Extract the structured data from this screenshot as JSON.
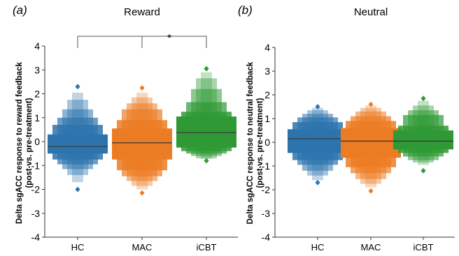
{
  "chart_data": [
    {
      "type": "boxen",
      "panel_label": "(a)",
      "title": "Reward",
      "ylabel_line1": "Delta sgACC response to reward feedback",
      "ylabel_line2": "(post-vs. pre-treatment)",
      "categories": [
        "HC",
        "MAC",
        "iCBT"
      ],
      "colors": [
        "#2d74ad",
        "#ec7c23",
        "#2f9a35"
      ],
      "ylim": [
        -4,
        4
      ],
      "yticks": [
        -4,
        -3,
        -2,
        -1,
        0,
        1,
        2,
        3,
        4
      ],
      "series": [
        {
          "name": "HC",
          "median": -0.2,
          "levels": [
            [
              -0.5,
              0.3
            ],
            [
              -0.75,
              0.7
            ],
            [
              -0.95,
              1.0
            ],
            [
              -1.15,
              1.35
            ],
            [
              -1.4,
              1.75
            ],
            [
              -1.7,
              2.05
            ]
          ],
          "outliers": [
            -2.0,
            2.3
          ]
        },
        {
          "name": "MAC",
          "median": -0.05,
          "levels": [
            [
              -0.75,
              0.55
            ],
            [
              -1.2,
              0.9
            ],
            [
              -1.45,
              1.35
            ],
            [
              -1.65,
              1.6
            ],
            [
              -1.85,
              1.85
            ],
            [
              -2.0,
              2.05
            ]
          ],
          "outliers": [
            -2.15,
            2.25
          ]
        },
        {
          "name": "iCBT",
          "median": 0.38,
          "levels": [
            [
              -0.25,
              1.05
            ],
            [
              -0.4,
              1.25
            ],
            [
              -0.5,
              1.65
            ],
            [
              -0.6,
              2.2
            ],
            [
              -0.7,
              2.65
            ],
            [
              -0.72,
              2.9
            ]
          ],
          "outliers": [
            -0.8,
            3.05
          ]
        }
      ],
      "annotation": "*"
    },
    {
      "type": "boxen",
      "panel_label": "(b)",
      "title": "Neutral",
      "ylabel_line1": "Delta sgACC response to neutral feedback",
      "ylabel_line2": "(post-vs. pre-treatment)",
      "categories": [
        "HC",
        "MAC",
        "iCBT"
      ],
      "colors": [
        "#2d74ad",
        "#ec7c23",
        "#2f9a35"
      ],
      "ylim": [
        -4,
        4
      ],
      "yticks": [
        -4,
        -3,
        -2,
        -1,
        0,
        1,
        2,
        3,
        4
      ],
      "series": [
        {
          "name": "HC",
          "median": 0.15,
          "levels": [
            [
              -0.45,
              0.55
            ],
            [
              -0.75,
              0.85
            ],
            [
              -0.95,
              1.05
            ],
            [
              -1.2,
              1.2
            ],
            [
              -1.4,
              1.35
            ],
            [
              -1.6,
              1.45
            ]
          ],
          "outliers": [
            -1.7,
            1.5
          ]
        },
        {
          "name": "MAC",
          "median": 0.05,
          "levels": [
            [
              -0.65,
              0.6
            ],
            [
              -1.05,
              0.9
            ],
            [
              -1.3,
              1.1
            ],
            [
              -1.55,
              1.3
            ],
            [
              -1.75,
              1.45
            ],
            [
              -1.9,
              1.55
            ]
          ],
          "outliers": [
            -2.05,
            1.6
          ]
        },
        {
          "name": "iCBT",
          "median": 0.05,
          "levels": [
            [
              -0.3,
              0.5
            ],
            [
              -0.45,
              0.7
            ],
            [
              -0.6,
              1.15
            ],
            [
              -0.75,
              1.35
            ],
            [
              -0.85,
              1.55
            ],
            [
              -0.95,
              1.75
            ]
          ],
          "outliers": [
            -1.2,
            1.85
          ]
        }
      ]
    }
  ]
}
